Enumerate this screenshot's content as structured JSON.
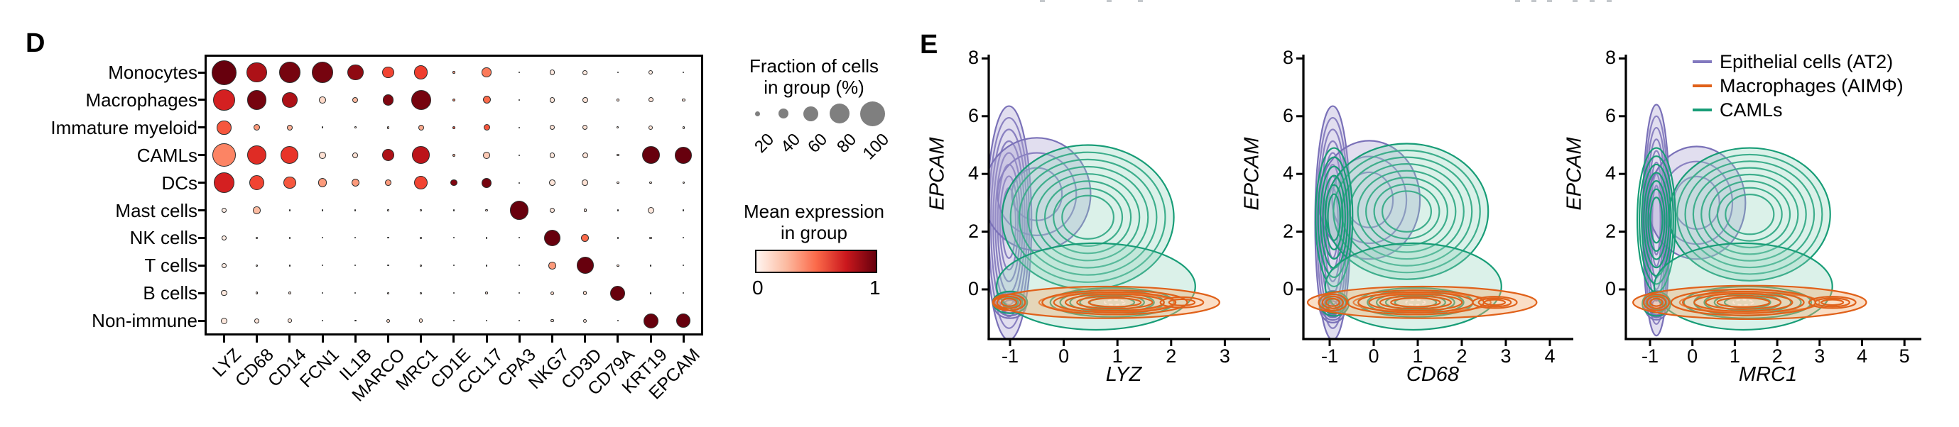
{
  "panel_d": {
    "label": "D",
    "rows": [
      "Monocytes",
      "Macrophages",
      "Immature myeloid",
      "CAMLs",
      "DCs",
      "Mast cells",
      "NK cells",
      "T cells",
      "B cells",
      "Non-immune"
    ],
    "genes": [
      "LYZ",
      "CD68",
      "CD14",
      "FCN1",
      "IL1B",
      "MARCO",
      "MRC1",
      "CD1E",
      "CCL17",
      "CPA3",
      "NKG7",
      "CD3D",
      "CD79A",
      "KRT19",
      "EPCAM"
    ],
    "legend_size": {
      "title_lines": [
        "Fraction of cells",
        "in group (%)"
      ],
      "values": [
        "20",
        "40",
        "60",
        "80",
        "100"
      ]
    },
    "legend_color": {
      "title_lines": [
        "Mean expression",
        "in group"
      ],
      "min_label": "0",
      "max_label": "1"
    }
  },
  "panel_e": {
    "label": "E",
    "legend": [
      {
        "label": "Epithelial cells (AT2)",
        "color": "#8279bf"
      },
      {
        "label": "Macrophages (AIMΦ)",
        "color": "#e0611a"
      },
      {
        "label": "CAMLs",
        "color": "#189d77"
      }
    ]
  },
  "chart_data": [
    {
      "id": "dot-plot",
      "type": "scatter",
      "subtype": "dot-plot",
      "title": "",
      "rows": [
        "Monocytes",
        "Macrophages",
        "Immature myeloid",
        "CAMLs",
        "DCs",
        "Mast cells",
        "NK cells",
        "T cells",
        "B cells",
        "Non-immune"
      ],
      "genes": [
        "LYZ",
        "CD68",
        "CD14",
        "FCN1",
        "IL1B",
        "MARCO",
        "MRC1",
        "CD1E",
        "CCL17",
        "CPA3",
        "NKG7",
        "CD3D",
        "CD79A",
        "KRT19",
        "EPCAM"
      ],
      "fraction_pct": [
        [
          100,
          82,
          85,
          88,
          65,
          48,
          56,
          10,
          38,
          6,
          22,
          20,
          7,
          18,
          6
        ],
        [
          88,
          78,
          65,
          28,
          24,
          45,
          80,
          13,
          32,
          6,
          22,
          22,
          10,
          20,
          13
        ],
        [
          58,
          26,
          24,
          8,
          8,
          10,
          23,
          11,
          26,
          6,
          20,
          20,
          9,
          17,
          10
        ],
        [
          95,
          78,
          72,
          28,
          22,
          48,
          70,
          12,
          28,
          6,
          22,
          24,
          10,
          72,
          68
        ],
        [
          85,
          60,
          50,
          35,
          33,
          25,
          55,
          28,
          40,
          5,
          25,
          25,
          10,
          10,
          9
        ],
        [
          22,
          30,
          8,
          4,
          5,
          5,
          7,
          5,
          10,
          75,
          20,
          12,
          8,
          26,
          4
        ],
        [
          20,
          8,
          8,
          4,
          4,
          6,
          8,
          4,
          8,
          4,
          68,
          33,
          8,
          10,
          4
        ],
        [
          20,
          8,
          8,
          4,
          4,
          6,
          8,
          4,
          8,
          4,
          30,
          68,
          10,
          8,
          4
        ],
        [
          24,
          10,
          10,
          5,
          6,
          8,
          8,
          5,
          10,
          5,
          14,
          16,
          60,
          8,
          6
        ],
        [
          26,
          20,
          16,
          6,
          8,
          14,
          16,
          4,
          8,
          4,
          12,
          14,
          6,
          60,
          58
        ]
      ],
      "mean_expression": [
        [
          1.0,
          0.85,
          0.97,
          0.97,
          0.92,
          0.6,
          0.62,
          0.35,
          0.45,
          0.15,
          0.07,
          0.07,
          0.1,
          0.07,
          0.3
        ],
        [
          0.72,
          0.97,
          0.85,
          0.15,
          0.25,
          0.95,
          0.97,
          0.4,
          0.5,
          0.15,
          0.08,
          0.1,
          0.1,
          0.1,
          0.1
        ],
        [
          0.55,
          0.35,
          0.28,
          0.15,
          0.15,
          0.2,
          0.3,
          0.55,
          0.55,
          0.15,
          0.1,
          0.12,
          0.1,
          0.12,
          0.1
        ],
        [
          0.42,
          0.68,
          0.65,
          0.12,
          0.12,
          0.85,
          0.8,
          0.3,
          0.2,
          0.12,
          0.08,
          0.1,
          0.1,
          1.0,
          1.0
        ],
        [
          0.72,
          0.6,
          0.55,
          0.35,
          0.35,
          0.35,
          0.6,
          0.95,
          0.97,
          0.2,
          0.1,
          0.12,
          0.1,
          0.12,
          0.1
        ],
        [
          0.05,
          0.25,
          0.1,
          0.05,
          0.05,
          0.05,
          0.1,
          0.1,
          0.1,
          1.0,
          0.08,
          0.1,
          0.1,
          0.08,
          0.05
        ],
        [
          0.06,
          0.1,
          0.1,
          0.05,
          0.05,
          0.08,
          0.1,
          0.08,
          0.1,
          0.1,
          1.0,
          0.5,
          0.1,
          0.1,
          0.05
        ],
        [
          0.05,
          0.1,
          0.1,
          0.05,
          0.05,
          0.08,
          0.1,
          0.08,
          0.1,
          0.1,
          0.35,
          1.0,
          0.15,
          0.1,
          0.05
        ],
        [
          0.08,
          0.1,
          0.1,
          0.05,
          0.08,
          0.1,
          0.1,
          0.08,
          0.1,
          0.1,
          0.15,
          0.15,
          1.0,
          0.1,
          0.08
        ],
        [
          0.08,
          0.1,
          0.1,
          0.08,
          0.08,
          0.15,
          0.15,
          0.05,
          0.1,
          0.08,
          0.1,
          0.1,
          0.08,
          1.0,
          1.0
        ]
      ],
      "size_legend_values": [
        20,
        40,
        60,
        80,
        100
      ],
      "color_legend_range": [
        0,
        1
      ],
      "colormap": "Reds",
      "colormap_stops": [
        "#fff5f0",
        "#fee0d2",
        "#fcbba1",
        "#fc9272",
        "#fb6a4a",
        "#ef3b2c",
        "#cb181d",
        "#a50f15",
        "#67000d"
      ]
    },
    {
      "id": "kde-lyz",
      "type": "scatter",
      "subtype": "kde-contour-2d",
      "xlabel": "LYZ",
      "ylabel": "EPCAM",
      "xticks": [
        -1,
        0,
        1,
        2,
        3
      ],
      "yticks": [
        0,
        2,
        4,
        6,
        8
      ],
      "xlim": [
        -1.55,
        3.55
      ],
      "ylim": [
        -1.7,
        8.15
      ],
      "series": [
        {
          "name": "Epithelial cells (AT2)",
          "blobs": [
            {
              "cx": -1.02,
              "cy": 2.3,
              "rx": 0.42,
              "ry": 4.05,
              "levels": 8,
              "fill": true
            },
            {
              "cx": -0.5,
              "cy": 3.3,
              "rx": 1.0,
              "ry": 1.95,
              "levels": 3,
              "fill": true
            },
            {
              "cx": -1.0,
              "cy": -0.55,
              "rx": 0.3,
              "ry": 0.45,
              "levels": 4,
              "fill": false
            }
          ]
        },
        {
          "name": "CAMLs",
          "blobs": [
            {
              "cx": 0.45,
              "cy": 2.5,
              "rx": 1.6,
              "ry": 2.5,
              "levels": 8,
              "fill": true
            },
            {
              "cx": 0.6,
              "cy": 0.1,
              "rx": 1.85,
              "ry": 1.5,
              "levels": 1,
              "fill": true
            },
            {
              "cx": 0.9,
              "cy": -0.45,
              "rx": 1.15,
              "ry": 0.5,
              "levels": 5,
              "fill": false
            },
            {
              "cx": -1.0,
              "cy": -0.45,
              "rx": 0.32,
              "ry": 0.38,
              "levels": 3,
              "fill": false
            }
          ]
        },
        {
          "name": "Macrophages (AIMΦ)",
          "blobs": [
            {
              "cx": 0.8,
              "cy": -0.45,
              "rx": 2.1,
              "ry": 0.55,
              "levels": 2,
              "fill": true
            },
            {
              "cx": 0.95,
              "cy": -0.45,
              "rx": 1.35,
              "ry": 0.42,
              "levels": 5,
              "fill": false,
              "core_dash": true
            },
            {
              "cx": 2.2,
              "cy": -0.45,
              "rx": 0.4,
              "ry": 0.18,
              "levels": 2,
              "fill": false
            },
            {
              "cx": -1.02,
              "cy": -0.45,
              "rx": 0.3,
              "ry": 0.28,
              "levels": 3,
              "fill": false
            }
          ]
        }
      ]
    },
    {
      "id": "kde-cd68",
      "type": "scatter",
      "subtype": "kde-contour-2d",
      "xlabel": "CD68",
      "ylabel": "EPCAM",
      "xticks": [
        -1,
        0,
        1,
        2,
        3,
        4
      ],
      "yticks": [
        0,
        2,
        4,
        6,
        8
      ],
      "xlim": [
        -1.55,
        4.55
      ],
      "ylim": [
        -1.7,
        8.15
      ],
      "series": [
        {
          "name": "Epithelial cells (AT2)",
          "blobs": [
            {
              "cx": -0.93,
              "cy": 2.3,
              "rx": 0.4,
              "ry": 4.05,
              "levels": 8,
              "fill": true
            },
            {
              "cx": -0.1,
              "cy": 3.1,
              "rx": 1.15,
              "ry": 2.05,
              "levels": 3,
              "fill": true
            },
            {
              "cx": -0.93,
              "cy": -0.6,
              "rx": 0.3,
              "ry": 0.55,
              "levels": 5,
              "fill": false
            }
          ]
        },
        {
          "name": "CAMLs",
          "blobs": [
            {
              "cx": 0.75,
              "cy": 2.7,
              "rx": 1.85,
              "ry": 2.35,
              "levels": 8,
              "fill": true
            },
            {
              "cx": -0.9,
              "cy": 2.5,
              "rx": 0.42,
              "ry": 2.4,
              "levels": 6,
              "fill": false
            },
            {
              "cx": 0.9,
              "cy": 0.1,
              "rx": 2.0,
              "ry": 1.5,
              "levels": 1,
              "fill": true
            },
            {
              "cx": 0.95,
              "cy": -0.45,
              "rx": 1.3,
              "ry": 0.5,
              "levels": 5,
              "fill": false
            },
            {
              "cx": -0.9,
              "cy": -0.5,
              "rx": 0.33,
              "ry": 0.42,
              "levels": 4,
              "fill": false
            }
          ]
        },
        {
          "name": "Macrophages (AIMΦ)",
          "blobs": [
            {
              "cx": 1.1,
              "cy": -0.45,
              "rx": 2.6,
              "ry": 0.55,
              "levels": 2,
              "fill": true
            },
            {
              "cx": 0.95,
              "cy": -0.45,
              "rx": 1.55,
              "ry": 0.42,
              "levels": 5,
              "fill": false,
              "core_dash": true
            },
            {
              "cx": 2.75,
              "cy": -0.45,
              "rx": 0.5,
              "ry": 0.2,
              "levels": 3,
              "fill": false
            },
            {
              "cx": -0.93,
              "cy": -0.45,
              "rx": 0.32,
              "ry": 0.28,
              "levels": 3,
              "fill": false
            }
          ]
        }
      ]
    },
    {
      "id": "kde-mrc1",
      "type": "scatter",
      "subtype": "kde-contour-2d",
      "xlabel": "MRC1",
      "ylabel": "EPCAM",
      "xticks": [
        -1,
        0,
        1,
        2,
        3,
        4,
        5
      ],
      "yticks": [
        0,
        2,
        4,
        6,
        8
      ],
      "xlim": [
        -1.58,
        5.47
      ],
      "ylim": [
        -1.7,
        8.15
      ],
      "series": [
        {
          "name": "Epithelial cells (AT2)",
          "blobs": [
            {
              "cx": -0.85,
              "cy": 2.4,
              "rx": 0.32,
              "ry": 4.0,
              "levels": 8,
              "fill": true
            },
            {
              "cx": 0.1,
              "cy": 3.0,
              "rx": 1.15,
              "ry": 1.95,
              "levels": 3,
              "fill": true
            },
            {
              "cx": -0.85,
              "cy": -0.55,
              "rx": 0.28,
              "ry": 0.5,
              "levels": 5,
              "fill": false
            }
          ]
        },
        {
          "name": "CAMLs",
          "blobs": [
            {
              "cx": 1.35,
              "cy": 2.6,
              "rx": 1.9,
              "ry": 2.3,
              "levels": 8,
              "fill": true
            },
            {
              "cx": -0.85,
              "cy": 2.4,
              "rx": 0.45,
              "ry": 2.5,
              "levels": 7,
              "fill": false
            },
            {
              "cx": 1.2,
              "cy": 0.1,
              "rx": 2.1,
              "ry": 1.5,
              "levels": 1,
              "fill": true
            },
            {
              "cx": 1.3,
              "cy": -0.45,
              "rx": 1.5,
              "ry": 0.55,
              "levels": 5,
              "fill": false
            },
            {
              "cx": -0.85,
              "cy": -0.5,
              "rx": 0.33,
              "ry": 0.42,
              "levels": 3,
              "fill": false
            }
          ]
        },
        {
          "name": "Macrophages (AIMΦ)",
          "blobs": [
            {
              "cx": 1.35,
              "cy": -0.45,
              "rx": 2.75,
              "ry": 0.58,
              "levels": 2,
              "fill": true
            },
            {
              "cx": 1.2,
              "cy": -0.45,
              "rx": 1.7,
              "ry": 0.45,
              "levels": 5,
              "fill": false,
              "core_dash": true
            },
            {
              "cx": 3.3,
              "cy": -0.45,
              "rx": 0.55,
              "ry": 0.2,
              "levels": 3,
              "fill": false
            },
            {
              "cx": -0.85,
              "cy": -0.45,
              "rx": 0.3,
              "ry": 0.28,
              "levels": 3,
              "fill": false
            }
          ]
        }
      ]
    }
  ],
  "series_colors": {
    "Epithelial cells (AT2)": {
      "stroke": "#7a71b8",
      "fill": "#a9a1d2",
      "fill_opacity": 0.35
    },
    "CAMLs": {
      "stroke": "#189d77",
      "fill": "#8fd2ba",
      "fill_opacity": 0.32
    },
    "Macrophages (AIMΦ)": {
      "stroke": "#e0611a",
      "fill": "#f2b078",
      "fill_opacity": 0.42
    }
  }
}
